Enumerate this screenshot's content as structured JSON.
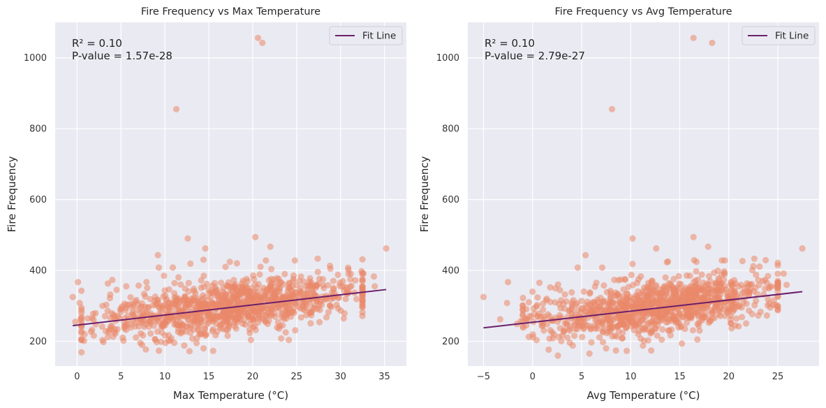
{
  "figure": {
    "background": "#ffffff",
    "axes_face": "#eaeaf2",
    "grid_color": "#ffffff",
    "point_color": "#e9886a",
    "fit_color": "#6b1f6b"
  },
  "chart_data": [
    {
      "type": "scatter",
      "title": "Fire Frequency vs Max Temperature",
      "xlabel": "Max Temperature (°C)",
      "ylabel": "Fire Frequency",
      "xlim": [
        -2.5,
        37.5
      ],
      "ylim": [
        130,
        1100
      ],
      "xticks": [
        0,
        5,
        10,
        15,
        20,
        25,
        30,
        35
      ],
      "xtick_labels": [
        "0",
        "5",
        "10",
        "15",
        "20",
        "25",
        "30",
        "35"
      ],
      "yticks": [
        200,
        400,
        600,
        800,
        1000
      ],
      "ytick_labels": [
        "200",
        "400",
        "600",
        "800",
        "1000"
      ],
      "grid": true,
      "legend": {
        "location": "upper right",
        "entries": [
          "Fit Line"
        ]
      },
      "annotation_lines": [
        "R² = 0.10",
        "P-value = 1.57e-28"
      ],
      "fit_line": {
        "name": "Fit Line",
        "x": [
          -0.5,
          35.2
        ],
        "y": [
          244,
          346
        ]
      },
      "series": [
        {
          "name": "",
          "color": "#e9886a",
          "cluster": {
            "x_range": [
              -0.5,
              35
            ],
            "slope": 2.85,
            "intercept": 245,
            "y_spread": 36,
            "count": 1050
          },
          "points": [
            [
              -0.5,
              325
            ],
            [
              0.1,
              367
            ],
            [
              0.3,
              308
            ],
            [
              -0.2,
              255
            ],
            [
              0.4,
              262
            ],
            [
              11.3,
              855
            ],
            [
              20.6,
              1056
            ],
            [
              21.1,
              1042
            ],
            [
              20.3,
              494
            ],
            [
              12.6,
              490
            ],
            [
              22.0,
              467
            ],
            [
              14.6,
              462
            ],
            [
              35.2,
              462
            ],
            [
              9.2,
              443
            ],
            [
              14.4,
              430
            ],
            [
              17.4,
              424
            ],
            [
              27.4,
              433
            ],
            [
              21.5,
              428
            ],
            [
              24.8,
              428
            ],
            [
              12.9,
              419
            ],
            [
              18.2,
              420
            ],
            [
              9.3,
              408
            ],
            [
              10.9,
              408
            ],
            [
              16.9,
              410
            ],
            [
              28.8,
              413
            ],
            [
              32.6,
              391
            ],
            [
              33.8,
              383
            ],
            [
              30.9,
              402
            ],
            [
              4.5,
              345
            ],
            [
              3.5,
              363
            ],
            [
              5.6,
              355
            ],
            [
              7.9,
              367
            ],
            [
              2.9,
              300
            ],
            [
              2.1,
              279
            ],
            [
              1.9,
              216
            ],
            [
              4.1,
              213
            ],
            [
              5.2,
              210
            ],
            [
              7.2,
              195
            ],
            [
              7.4,
              190
            ],
            [
              8.9,
              205
            ],
            [
              10.4,
              202
            ],
            [
              12.2,
              188
            ],
            [
              12.8,
              172
            ],
            [
              14.4,
              180
            ],
            [
              15.5,
              173
            ],
            [
              13.6,
              195
            ],
            [
              19.8,
              204
            ],
            [
              23.1,
              243
            ],
            [
              26.1,
              274
            ],
            [
              25.9,
              288
            ],
            [
              29.8,
              325
            ],
            [
              27.2,
              352
            ],
            [
              31.1,
              354
            ],
            [
              33.9,
              355
            ],
            [
              30.7,
              349
            ],
            [
              27.6,
              376
            ],
            [
              28.1,
              350
            ],
            [
              9.9,
              385
            ],
            [
              11.1,
              364
            ],
            [
              11.8,
              360
            ],
            [
              16.4,
              365
            ],
            [
              18.9,
              371
            ]
          ]
        }
      ]
    },
    {
      "type": "scatter",
      "title": "Fire Frequency vs Avg Temperature",
      "xlabel": "Avg Temperature (°C)",
      "ylabel": "Fire Frequency",
      "xlim": [
        -6.6,
        29.2
      ],
      "ylim": [
        130,
        1100
      ],
      "xticks": [
        -5,
        0,
        5,
        10,
        15,
        20,
        25
      ],
      "xtick_labels": [
        "−5",
        "0",
        "5",
        "10",
        "15",
        "20",
        "25"
      ],
      "yticks": [
        200,
        400,
        600,
        800,
        1000
      ],
      "ytick_labels": [
        "200",
        "400",
        "600",
        "800",
        "1000"
      ],
      "grid": true,
      "legend": {
        "location": "upper right",
        "entries": [
          "Fit Line"
        ]
      },
      "annotation_lines": [
        "R² = 0.10",
        "P-value = 2.79e-27"
      ],
      "fit_line": {
        "name": "Fit Line",
        "x": [
          -5.0,
          27.5
        ],
        "y": [
          238,
          340
        ]
      },
      "series": [
        {
          "name": "",
          "color": "#e9886a",
          "cluster": {
            "x_range": [
              -2,
              27.5
            ],
            "slope": 3.1,
            "intercept": 253,
            "y_spread": 36,
            "count": 1050
          },
          "points": [
            [
              -5.0,
              325
            ],
            [
              -3.3,
              262
            ],
            [
              -2.6,
              308
            ],
            [
              -2.5,
              367
            ],
            [
              -1.2,
              257
            ],
            [
              8.1,
              855
            ],
            [
              16.4,
              1056
            ],
            [
              18.3,
              1042
            ],
            [
              16.4,
              494
            ],
            [
              10.2,
              490
            ],
            [
              17.9,
              467
            ],
            [
              12.6,
              462
            ],
            [
              27.5,
              462
            ],
            [
              5.4,
              443
            ],
            [
              13.8,
              425
            ],
            [
              13.7,
              423
            ],
            [
              22.6,
              433
            ],
            [
              19.3,
              428
            ],
            [
              19.6,
              428
            ],
            [
              16.7,
              424
            ],
            [
              10.2,
              418
            ],
            [
              4.6,
              408
            ],
            [
              7.1,
              408
            ],
            [
              22.5,
              412
            ],
            [
              25.6,
              391
            ],
            [
              24.0,
              384
            ],
            [
              22.4,
              401
            ],
            [
              0.0,
              340
            ],
            [
              0.4,
              298
            ],
            [
              0.7,
              365
            ],
            [
              1.8,
              352
            ],
            [
              2.6,
              360
            ],
            [
              1.2,
              262
            ],
            [
              2.0,
              225
            ],
            [
              3.8,
              196
            ],
            [
              4.1,
              188
            ],
            [
              6.0,
              197
            ],
            [
              7.5,
              180
            ],
            [
              8.5,
              174
            ],
            [
              9.6,
              173
            ],
            [
              12.1,
              174
            ],
            [
              16.8,
              205
            ],
            [
              20.6,
              290
            ],
            [
              24.3,
              355
            ],
            [
              25.9,
              359
            ],
            [
              22.1,
              340
            ],
            [
              23.9,
              365
            ],
            [
              6.5,
              365
            ],
            [
              9.0,
              374
            ],
            [
              15.1,
              361
            ],
            [
              18.1,
              370
            ],
            [
              3.3,
              332
            ],
            [
              -1.6,
              249
            ]
          ]
        }
      ]
    }
  ]
}
